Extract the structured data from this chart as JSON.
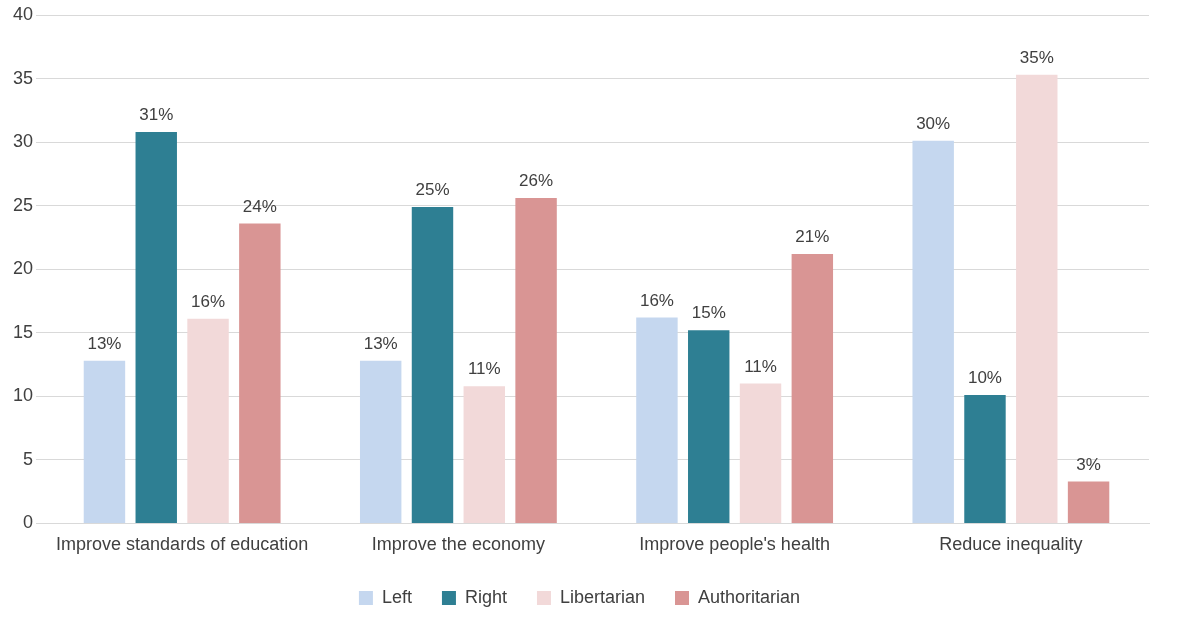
{
  "chart_data": {
    "type": "bar",
    "categories": [
      "Improve standards of education",
      "Improve the economy",
      "Improve people's health",
      "Reduce inequality"
    ],
    "series": [
      {
        "name": "Left",
        "color": "#c5d7ef",
        "values": [
          12.8,
          12.8,
          16.2,
          30.1
        ],
        "value_labels": [
          "13%",
          "13%",
          "16%",
          "30%"
        ]
      },
      {
        "name": "Right",
        "color": "#2e7f93",
        "values": [
          30.8,
          24.9,
          15.2,
          10.1
        ],
        "value_labels": [
          "31%",
          "25%",
          "15%",
          "10%"
        ]
      },
      {
        "name": "Libertarian",
        "color": "#f2d9d9",
        "values": [
          16.1,
          10.8,
          11.0,
          35.3
        ],
        "value_labels": [
          "16%",
          "11%",
          "11%",
          "35%"
        ]
      },
      {
        "name": "Authoritarian",
        "color": "#d99594",
        "values": [
          23.6,
          25.6,
          21.2,
          3.3
        ],
        "value_labels": [
          "24%",
          "26%",
          "21%",
          "3%"
        ]
      }
    ],
    "ylim": [
      0,
      40
    ],
    "yticks": [
      0,
      5,
      10,
      15,
      20,
      25,
      30,
      35,
      40
    ],
    "grid": "y",
    "legend": "bottom"
  }
}
